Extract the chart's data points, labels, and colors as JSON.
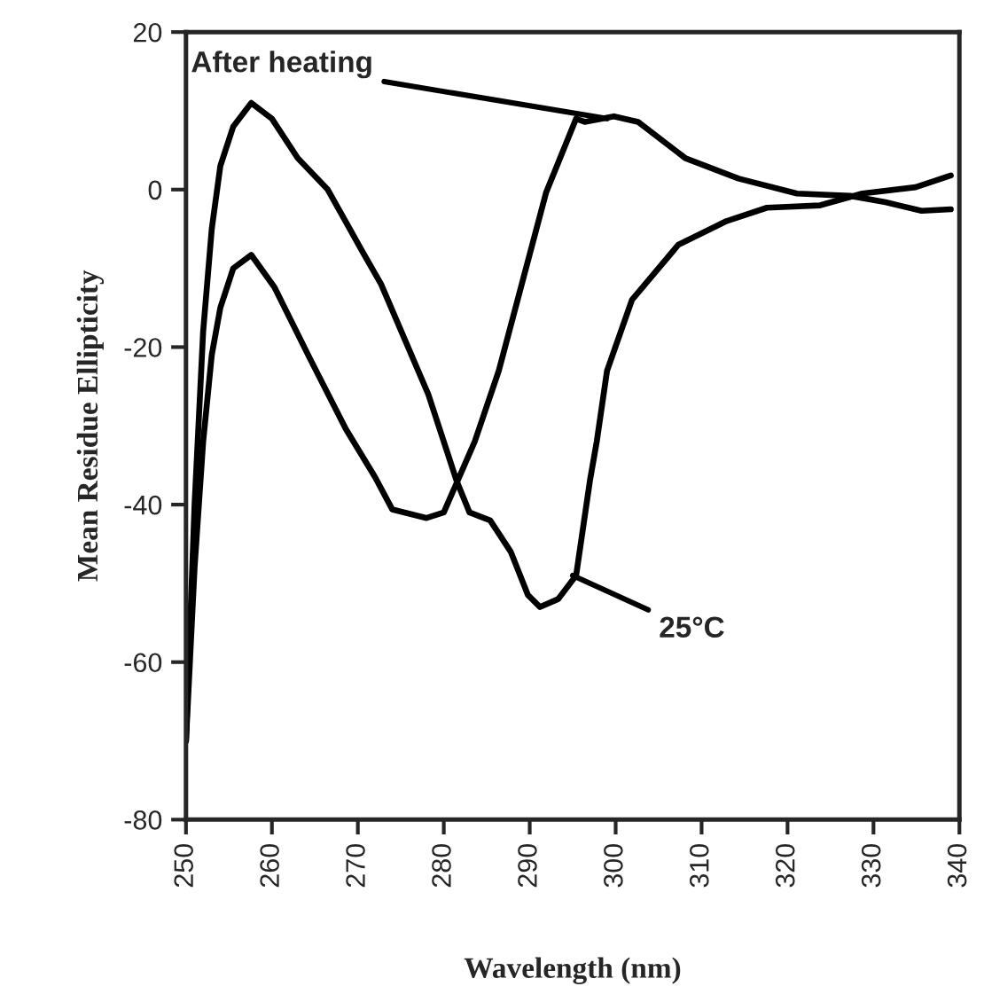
{
  "chart_data": {
    "type": "line",
    "xlabel": "Wavelength (nm)",
    "ylabel": "Mean Residue Ellipticity",
    "xlim": [
      250,
      340
    ],
    "xticks": [
      250,
      260,
      270,
      280,
      290,
      300,
      310,
      320,
      330,
      340
    ],
    "ylim": [
      -80,
      20
    ],
    "yticks": [
      -80,
      -60,
      -40,
      -20,
      0,
      20
    ],
    "grid": false,
    "legend": false,
    "marker": "none",
    "line_style": "solid",
    "series": [
      {
        "color": "#000000",
        "x": [
          250,
          251,
          252,
          253,
          254,
          255.5,
          257.6,
          260,
          263,
          266.5,
          270.6,
          272.7,
          278.2,
          281.5,
          283,
          285.4,
          287.8,
          289.8,
          291.2,
          293.3,
          295.4,
          297,
          297.8,
          299,
          301.9,
          307.3,
          312.9,
          317.6,
          323.8,
          328.7,
          334.9,
          339
        ],
        "values": [
          -70,
          -40,
          -18,
          -5,
          3,
          8,
          11,
          9,
          4,
          0,
          -8,
          -12,
          -26,
          -37,
          -41,
          -42,
          -46,
          -51.5,
          -53,
          -52,
          -49,
          -37,
          -32,
          -23,
          -14,
          -7,
          -4,
          -2.3,
          -2,
          -0.5,
          0.3,
          1.8
        ]
      },
      {
        "color": "#000000",
        "x": [
          250,
          251,
          252,
          253,
          254,
          255.5,
          257.6,
          260.3,
          264.4,
          268.6,
          272,
          274,
          278,
          280,
          283.6,
          286.4,
          291.9,
          295.4,
          296.4,
          299.8,
          302.6,
          308.1,
          314.3,
          321.1,
          327.3,
          331.4,
          335.6,
          339
        ],
        "values": [
          -70,
          -48,
          -32,
          -21,
          -15,
          -10,
          -8.3,
          -12.4,
          -21.4,
          -30.4,
          -36.5,
          -40.6,
          -41.7,
          -41,
          -32,
          -23,
          -0.4,
          9,
          8.6,
          9.3,
          8.6,
          4,
          1.4,
          -0.5,
          -0.8,
          -1.6,
          -2.7,
          -2.5
        ]
      }
    ],
    "annotations": [
      {
        "text": "After heating",
        "x": 299,
        "y": 9
      },
      {
        "text": "25°C",
        "x": 295,
        "y": -49
      }
    ]
  }
}
